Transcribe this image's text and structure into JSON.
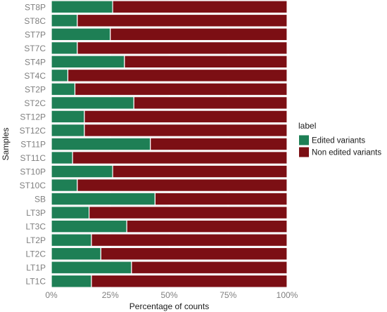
{
  "chart_data": {
    "type": "bar",
    "orientation": "horizontal",
    "stacked": true,
    "categories": [
      "ST8P",
      "ST8C",
      "ST7P",
      "ST7C",
      "ST4P",
      "ST4C",
      "ST2P",
      "ST2C",
      "ST12P",
      "ST12C",
      "ST11P",
      "ST11C",
      "ST10P",
      "ST10C",
      "SB",
      "LT3P",
      "LT3C",
      "LT2P",
      "LT2C",
      "LT1P",
      "LT1C"
    ],
    "series": [
      {
        "name": "Edited variants",
        "color": "#1e7f55",
        "values": [
          0.26,
          0.11,
          0.25,
          0.11,
          0.31,
          0.07,
          0.1,
          0.35,
          0.14,
          0.14,
          0.42,
          0.09,
          0.26,
          0.11,
          0.44,
          0.16,
          0.32,
          0.17,
          0.21,
          0.34,
          0.17
        ]
      },
      {
        "name": "Non edited variants",
        "color": "#7c0f14",
        "values": [
          0.74,
          0.89,
          0.75,
          0.89,
          0.69,
          0.93,
          0.9,
          0.65,
          0.86,
          0.86,
          0.58,
          0.91,
          0.74,
          0.89,
          0.56,
          0.84,
          0.68,
          0.83,
          0.79,
          0.66,
          0.83
        ]
      }
    ],
    "xlabel": "Percentage of counts",
    "ylabel": "Samples",
    "xlim": [
      0,
      1
    ],
    "xticks": [
      0,
      0.25,
      0.5,
      0.75,
      1
    ],
    "xtick_labels": [
      "0%",
      "25%",
      "50%",
      "75%",
      "100%"
    ],
    "legend": {
      "title": "label",
      "placement": "right"
    },
    "panel_background": "#ebebeb",
    "grid": true
  }
}
